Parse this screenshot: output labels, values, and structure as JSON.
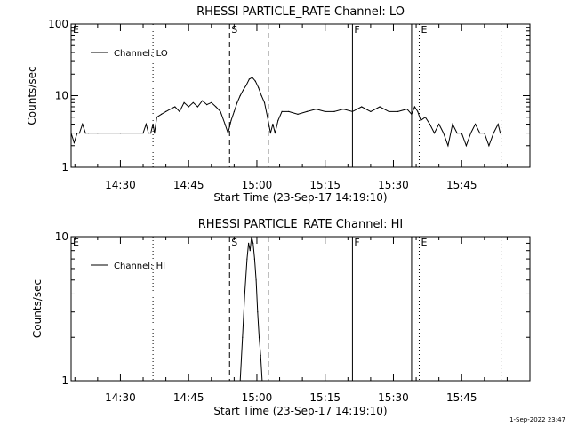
{
  "footer": {
    "timestamp": "1-Sep-2022 23:47"
  },
  "colors": {
    "background": "#ffffff",
    "foreground": "#000000"
  },
  "chart_data": [
    {
      "type": "line",
      "title": "RHESSI PARTICLE_RATE Channel: LO",
      "xlabel": "Start Time (23-Sep-17 14:19:10)",
      "ylabel": "Counts/sec",
      "yscale": "log",
      "ylim": [
        1,
        100
      ],
      "xlim": [
        "14:19:10",
        "16:00:00"
      ],
      "yticks": [
        {
          "value": 1,
          "label": "1"
        },
        {
          "value": 10,
          "label": "10"
        },
        {
          "value": 100,
          "label": "100"
        }
      ],
      "xticks": [
        "14:30",
        "14:45",
        "15:00",
        "15:15",
        "15:30",
        "15:45"
      ],
      "legend": {
        "position": "top-left",
        "entries": [
          "Channel: LO"
        ]
      },
      "series": [
        {
          "name": "Channel: LO",
          "x": [
            "14:19:10",
            "14:19:50",
            "14:20:30",
            "14:21:00",
            "14:21:40",
            "14:22:20",
            "14:23:00",
            "14:25:00",
            "14:30:00",
            "14:35:00",
            "14:35:40",
            "14:36:10",
            "14:36:40",
            "14:37:10",
            "14:37:30",
            "14:38:00",
            "14:39:00",
            "14:40:00",
            "14:41:00",
            "14:42:00",
            "14:43:00",
            "14:44:00",
            "14:45:00",
            "14:46:00",
            "14:47:00",
            "14:48:00",
            "14:49:00",
            "14:50:00",
            "14:51:00",
            "14:52:00",
            "14:53:00",
            "14:53:40",
            "14:54:20",
            "14:55:00",
            "14:55:40",
            "14:56:20",
            "14:57:00",
            "14:57:40",
            "14:58:20",
            "14:59:00",
            "14:59:40",
            "15:00:20",
            "15:01:00",
            "15:01:40",
            "15:02:20",
            "15:03:00",
            "15:03:30",
            "15:04:00",
            "15:04:40",
            "15:05:30",
            "15:07:00",
            "15:09:00",
            "15:11:00",
            "15:13:00",
            "15:15:00",
            "15:17:00",
            "15:19:00",
            "15:21:00",
            "15:23:00",
            "15:25:00",
            "15:27:00",
            "15:29:00",
            "15:31:00",
            "15:33:00",
            "15:34:00",
            "15:34:40",
            "15:35:20",
            "15:36:00",
            "15:37:00",
            "15:38:00",
            "15:39:00",
            "15:40:00",
            "15:41:00",
            "15:42:00",
            "15:43:00",
            "15:44:00",
            "15:45:00",
            "15:46:00",
            "15:47:00",
            "15:48:00",
            "15:49:00",
            "15:50:00",
            "15:51:00",
            "15:52:00",
            "15:53:00",
            "15:53:30"
          ],
          "y": [
            3.0,
            2.2,
            3.0,
            3.0,
            4.0,
            3.0,
            3.0,
            3.0,
            3.0,
            3.0,
            4.0,
            3.0,
            3.0,
            4.0,
            3.0,
            5.0,
            5.5,
            6.0,
            6.5,
            7.0,
            6.0,
            8.0,
            7.0,
            8.0,
            7.0,
            8.5,
            7.5,
            8.0,
            7.0,
            6.0,
            4.0,
            3.0,
            4.5,
            6.0,
            8.0,
            10.0,
            12.0,
            14.0,
            17.0,
            18.0,
            16.0,
            13.0,
            10.0,
            8.0,
            5.0,
            3.0,
            4.0,
            3.0,
            4.5,
            6.0,
            6.0,
            5.5,
            6.0,
            6.5,
            6.0,
            6.0,
            6.5,
            6.0,
            7.0,
            6.0,
            7.0,
            6.0,
            6.0,
            6.5,
            5.5,
            7.0,
            6.0,
            4.5,
            5.0,
            4.0,
            3.0,
            4.0,
            3.0,
            2.0,
            4.0,
            3.0,
            3.0,
            2.0,
            3.0,
            4.0,
            3.0,
            3.0,
            2.0,
            3.0,
            4.0,
            3.0
          ]
        }
      ],
      "annotations": [
        {
          "label": "E",
          "time": "14:19:10",
          "style": "none"
        },
        {
          "label": "",
          "time": "14:37:10",
          "style": "dotted"
        },
        {
          "label": "S",
          "time": "14:54:00",
          "style": "dashed"
        },
        {
          "label": "",
          "time": "15:02:30",
          "style": "dashed"
        },
        {
          "label": "F",
          "time": "15:21:00",
          "style": "solid"
        },
        {
          "label": "",
          "time": "15:34:00",
          "style": "solid"
        },
        {
          "label": "E",
          "time": "15:35:40",
          "style": "dotted"
        },
        {
          "label": "",
          "time": "15:53:40",
          "style": "dotted"
        }
      ]
    },
    {
      "type": "line",
      "title": "RHESSI PARTICLE_RATE Channel: HI",
      "xlabel": "Start Time (23-Sep-17 14:19:10)",
      "ylabel": "Counts/sec",
      "yscale": "log",
      "ylim": [
        1,
        10
      ],
      "xlim": [
        "14:19:10",
        "16:00:00"
      ],
      "yticks": [
        {
          "value": 1,
          "label": "1"
        },
        {
          "value": 10,
          "label": "10"
        }
      ],
      "xticks": [
        "14:30",
        "14:45",
        "15:00",
        "15:15",
        "15:30",
        "15:45"
      ],
      "legend": {
        "position": "top-left",
        "entries": [
          "Channel: HI"
        ]
      },
      "series": [
        {
          "name": "Channel: HI",
          "x": [
            "14:56:20",
            "14:56:50",
            "14:57:20",
            "14:57:50",
            "14:58:10",
            "14:58:30",
            "14:58:50",
            "14:59:10",
            "14:59:30",
            "14:59:50",
            "15:00:10",
            "15:00:30",
            "15:00:50",
            "15:01:10"
          ],
          "y": [
            1.0,
            2.0,
            4.0,
            7.0,
            9.0,
            8.0,
            10.0,
            9.0,
            7.0,
            5.0,
            3.0,
            2.0,
            1.5,
            1.0
          ]
        }
      ],
      "annotations": [
        {
          "label": "E",
          "time": "14:19:10",
          "style": "none"
        },
        {
          "label": "",
          "time": "14:37:10",
          "style": "dotted"
        },
        {
          "label": "S",
          "time": "14:54:00",
          "style": "dashed"
        },
        {
          "label": "",
          "time": "15:02:30",
          "style": "dashed"
        },
        {
          "label": "F",
          "time": "15:21:00",
          "style": "solid"
        },
        {
          "label": "",
          "time": "15:34:00",
          "style": "solid"
        },
        {
          "label": "E",
          "time": "15:35:40",
          "style": "dotted"
        },
        {
          "label": "",
          "time": "15:53:40",
          "style": "dotted"
        }
      ]
    }
  ]
}
